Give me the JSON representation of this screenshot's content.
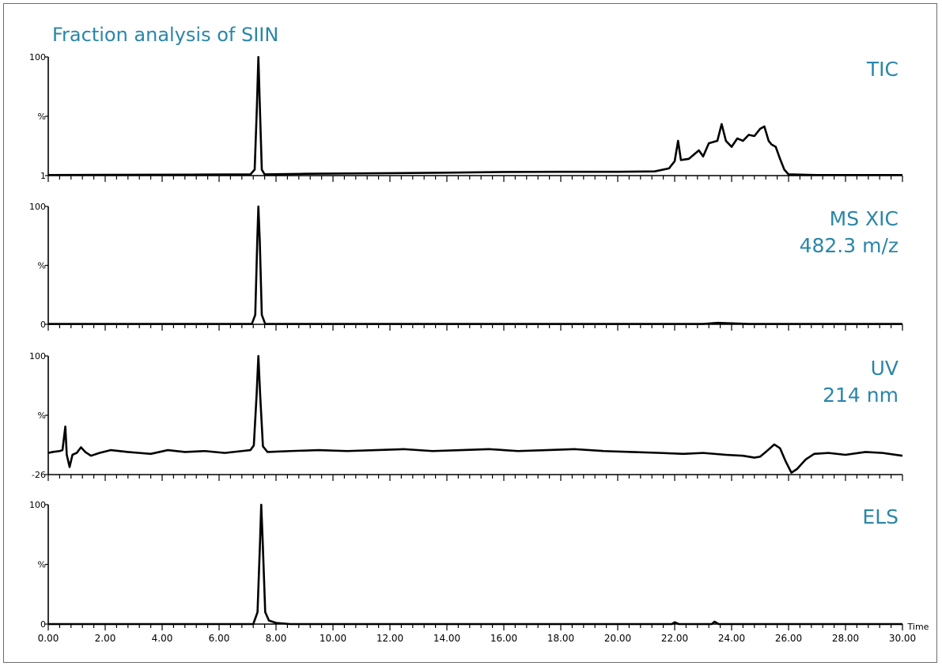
{
  "title": "Fraction analysis of SIIN",
  "chart_data": {
    "type": "line",
    "title": "Fraction analysis of SIIN",
    "xlabel": "Time",
    "xlim": [
      0,
      30
    ],
    "x_ticks": [
      "0.00",
      "2.00",
      "4.00",
      "6.00",
      "8.00",
      "10.00",
      "12.00",
      "14.00",
      "16.00",
      "18.00",
      "20.00",
      "22.00",
      "24.00",
      "26.00",
      "28.00",
      "30.00"
    ],
    "panels": [
      {
        "name": "TIC",
        "label_lines": [
          "TIC"
        ],
        "y_tick_labels": {
          "top": "100",
          "mid": "%",
          "bottom": "1"
        },
        "ylim": [
          1,
          100
        ],
        "points": [
          [
            0,
            1.5
          ],
          [
            5,
            1.8
          ],
          [
            7.1,
            2
          ],
          [
            7.25,
            6
          ],
          [
            7.33,
            60
          ],
          [
            7.38,
            100
          ],
          [
            7.43,
            60
          ],
          [
            7.5,
            6
          ],
          [
            7.6,
            2
          ],
          [
            9,
            2.5
          ],
          [
            12,
            3
          ],
          [
            14,
            3.4
          ],
          [
            16,
            4
          ],
          [
            18,
            4.2
          ],
          [
            20,
            4.2
          ],
          [
            21.3,
            4.5
          ],
          [
            21.8,
            7
          ],
          [
            22.0,
            13
          ],
          [
            22.12,
            30
          ],
          [
            22.22,
            14
          ],
          [
            22.5,
            15
          ],
          [
            22.85,
            22
          ],
          [
            23.0,
            17
          ],
          [
            23.2,
            28
          ],
          [
            23.5,
            30
          ],
          [
            23.65,
            44
          ],
          [
            23.8,
            30
          ],
          [
            24.0,
            25
          ],
          [
            24.2,
            32
          ],
          [
            24.4,
            30
          ],
          [
            24.6,
            35
          ],
          [
            24.8,
            34
          ],
          [
            25.0,
            40
          ],
          [
            25.15,
            42
          ],
          [
            25.3,
            30
          ],
          [
            25.4,
            27
          ],
          [
            25.55,
            25
          ],
          [
            25.7,
            15
          ],
          [
            25.85,
            6
          ],
          [
            26.0,
            2
          ],
          [
            27,
            1.5
          ],
          [
            30,
            1.5
          ]
        ]
      },
      {
        "name": "MS XIC 482.3 m/z",
        "label_lines": [
          "MS XIC",
          "482.3 m/z"
        ],
        "y_tick_labels": {
          "top": "100",
          "mid": "%",
          "bottom": "0"
        },
        "ylim": [
          0,
          100
        ],
        "points": [
          [
            0,
            0.3
          ],
          [
            7.15,
            0.3
          ],
          [
            7.27,
            8
          ],
          [
            7.34,
            70
          ],
          [
            7.38,
            100
          ],
          [
            7.43,
            70
          ],
          [
            7.5,
            8
          ],
          [
            7.62,
            0.3
          ],
          [
            23,
            0.3
          ],
          [
            23.5,
            1.2
          ],
          [
            24,
            0.8
          ],
          [
            24.6,
            0.3
          ],
          [
            30,
            0.3
          ]
        ]
      },
      {
        "name": "UV 214 nm",
        "label_lines": [
          "UV",
          "214 nm"
        ],
        "y_tick_labels": {
          "top": "100",
          "mid": "%",
          "bottom": "-26"
        },
        "ylim": [
          -26,
          100
        ],
        "points": [
          [
            0,
            -3
          ],
          [
            0.15,
            -2
          ],
          [
            0.4,
            -1
          ],
          [
            0.5,
            0
          ],
          [
            0.6,
            25
          ],
          [
            0.65,
            -5
          ],
          [
            0.75,
            -18
          ],
          [
            0.85,
            -5
          ],
          [
            1.0,
            -3
          ],
          [
            1.15,
            3
          ],
          [
            1.3,
            -2
          ],
          [
            1.5,
            -6
          ],
          [
            1.8,
            -3
          ],
          [
            2.2,
            0
          ],
          [
            2.8,
            -2
          ],
          [
            3.2,
            -3
          ],
          [
            3.6,
            -4
          ],
          [
            4.2,
            0
          ],
          [
            4.8,
            -2
          ],
          [
            5.5,
            -1
          ],
          [
            6.2,
            -3
          ],
          [
            6.8,
            -1
          ],
          [
            7.1,
            0
          ],
          [
            7.22,
            5
          ],
          [
            7.32,
            60
          ],
          [
            7.38,
            100
          ],
          [
            7.44,
            60
          ],
          [
            7.54,
            4
          ],
          [
            7.7,
            -2
          ],
          [
            8.5,
            -1
          ],
          [
            9.5,
            0
          ],
          [
            10.5,
            -1
          ],
          [
            11.5,
            0
          ],
          [
            12.5,
            1
          ],
          [
            13.5,
            -1
          ],
          [
            14.5,
            0
          ],
          [
            15.5,
            1
          ],
          [
            16.5,
            -1
          ],
          [
            17.5,
            0
          ],
          [
            18.5,
            1
          ],
          [
            19.5,
            -1
          ],
          [
            20.5,
            -2
          ],
          [
            21.5,
            -3
          ],
          [
            22.3,
            -4
          ],
          [
            23.0,
            -3
          ],
          [
            23.8,
            -5
          ],
          [
            24.4,
            -6
          ],
          [
            24.8,
            -8
          ],
          [
            25.0,
            -7
          ],
          [
            25.2,
            -2
          ],
          [
            25.5,
            6
          ],
          [
            25.7,
            2
          ],
          [
            25.9,
            -12
          ],
          [
            26.1,
            -24
          ],
          [
            26.3,
            -20
          ],
          [
            26.6,
            -10
          ],
          [
            26.9,
            -4
          ],
          [
            27.4,
            -3
          ],
          [
            28,
            -5
          ],
          [
            28.7,
            -2
          ],
          [
            29.3,
            -3
          ],
          [
            30,
            -6
          ]
        ]
      },
      {
        "name": "ELS",
        "label_lines": [
          "ELS"
        ],
        "y_tick_labels": {
          "top": "100",
          "mid": "%",
          "bottom": "0"
        },
        "ylim": [
          0,
          100
        ],
        "points": [
          [
            0,
            0
          ],
          [
            7.2,
            0
          ],
          [
            7.35,
            10
          ],
          [
            7.44,
            70
          ],
          [
            7.48,
            100
          ],
          [
            7.53,
            70
          ],
          [
            7.62,
            10
          ],
          [
            7.75,
            3
          ],
          [
            8.0,
            1
          ],
          [
            8.5,
            0
          ],
          [
            21.9,
            0
          ],
          [
            22.0,
            1.5
          ],
          [
            22.15,
            0
          ],
          [
            23.3,
            0
          ],
          [
            23.4,
            2
          ],
          [
            23.55,
            0
          ],
          [
            30,
            0
          ]
        ]
      }
    ]
  }
}
